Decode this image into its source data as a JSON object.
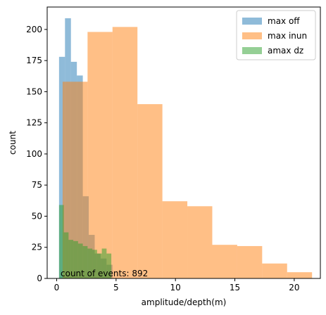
{
  "chart_data": {
    "type": "bar",
    "subtype": "overlapping-histogram",
    "xlabel": "amplitude/depth(m)",
    "ylabel": "count",
    "xlim": [
      -0.8,
      22.2
    ],
    "ylim": [
      0,
      218
    ],
    "xticks": [
      0,
      5,
      10,
      15,
      20
    ],
    "yticks": [
      0,
      25,
      50,
      75,
      100,
      125,
      150,
      175,
      200
    ],
    "grid": false,
    "legend_position": "top-right",
    "annotation": "count of events: 892",
    "series": [
      {
        "name": "max off",
        "color": "#1f77b4",
        "opacity": 0.5,
        "bin_edges": [
          0.2,
          0.7,
          1.2,
          1.7,
          2.2,
          2.7,
          3.2,
          3.7,
          4.2,
          4.7
        ],
        "counts": [
          178,
          209,
          174,
          163,
          66,
          35,
          20,
          16,
          11
        ]
      },
      {
        "name": "max inun",
        "color": "#ff7f0e",
        "opacity": 0.5,
        "bin_edges": [
          0.5,
          2.6,
          4.7,
          6.8,
          8.9,
          11.0,
          13.1,
          15.2,
          17.3,
          19.4,
          21.5
        ],
        "counts": [
          158,
          198,
          202,
          140,
          62,
          58,
          27,
          26,
          12,
          5
        ]
      },
      {
        "name": "amax dz",
        "color": "#2ca02c",
        "opacity": 0.5,
        "bin_edges": [
          0.2,
          0.6,
          1.0,
          1.4,
          1.8,
          2.2,
          2.6,
          3.0,
          3.4,
          3.8,
          4.2,
          4.6
        ],
        "counts": [
          59,
          37,
          31,
          30,
          28,
          26,
          24,
          23,
          20,
          24,
          20
        ]
      }
    ]
  }
}
